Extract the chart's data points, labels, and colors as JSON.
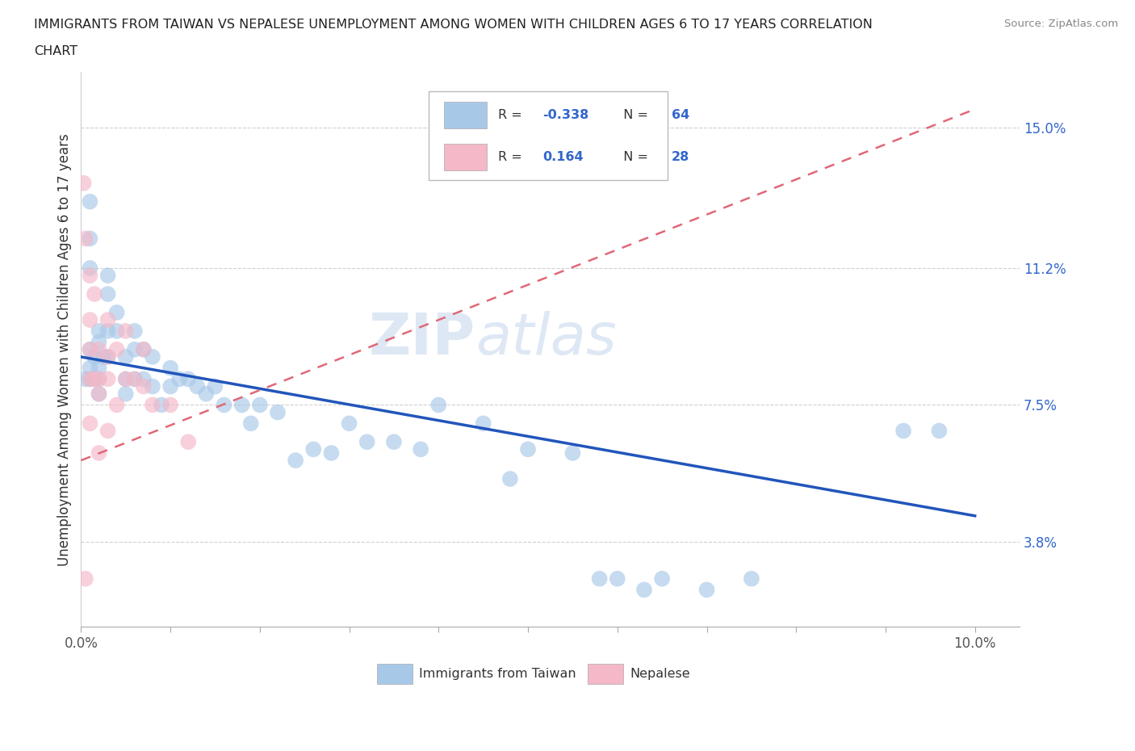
{
  "title_line1": "IMMIGRANTS FROM TAIWAN VS NEPALESE UNEMPLOYMENT AMONG WOMEN WITH CHILDREN AGES 6 TO 17 YEARS CORRELATION",
  "title_line2": "CHART",
  "source": "Source: ZipAtlas.com",
  "ylabel": "Unemployment Among Women with Children Ages 6 to 17 years",
  "xlim": [
    0.0,
    0.105
  ],
  "ylim": [
    0.015,
    0.165
  ],
  "right_ytick_labels": [
    "15.0%",
    "11.2%",
    "7.5%",
    "3.8%"
  ],
  "right_ytick_vals": [
    0.15,
    0.112,
    0.075,
    0.038
  ],
  "taiwan_color": "#a8c8e8",
  "nepalese_color": "#f4b8c8",
  "taiwan_line_color": "#2255bb",
  "nepalese_line_color": "#e06878",
  "watermark_zip": "ZIP",
  "watermark_atlas": "atlas",
  "legend_box_color_taiwan": "#a8c8e8",
  "legend_box_color_nepalese": "#f4b8c8",
  "legend_label_taiwan": "Immigrants from Taiwan",
  "legend_label_nepalese": "Nepalese",
  "taiwan_x": [
    0.0005,
    0.001,
    0.001,
    0.001,
    0.001,
    0.001,
    0.001,
    0.0015,
    0.0015,
    0.002,
    0.002,
    0.002,
    0.002,
    0.002,
    0.0025,
    0.003,
    0.003,
    0.003,
    0.003,
    0.004,
    0.004,
    0.005,
    0.005,
    0.005,
    0.006,
    0.006,
    0.006,
    0.007,
    0.007,
    0.008,
    0.008,
    0.009,
    0.01,
    0.01,
    0.011,
    0.012,
    0.013,
    0.014,
    0.015,
    0.016,
    0.018,
    0.019,
    0.02,
    0.022,
    0.024,
    0.026,
    0.028,
    0.03,
    0.032,
    0.035,
    0.038,
    0.04,
    0.045,
    0.048,
    0.05,
    0.055,
    0.058,
    0.06,
    0.063,
    0.065,
    0.07,
    0.075,
    0.092,
    0.096
  ],
  "taiwan_y": [
    0.082,
    0.13,
    0.12,
    0.112,
    0.09,
    0.085,
    0.082,
    0.088,
    0.082,
    0.095,
    0.092,
    0.085,
    0.082,
    0.078,
    0.088,
    0.11,
    0.105,
    0.095,
    0.088,
    0.1,
    0.095,
    0.088,
    0.082,
    0.078,
    0.095,
    0.09,
    0.082,
    0.09,
    0.082,
    0.088,
    0.08,
    0.075,
    0.085,
    0.08,
    0.082,
    0.082,
    0.08,
    0.078,
    0.08,
    0.075,
    0.075,
    0.07,
    0.075,
    0.073,
    0.06,
    0.063,
    0.062,
    0.07,
    0.065,
    0.065,
    0.063,
    0.075,
    0.07,
    0.055,
    0.063,
    0.062,
    0.028,
    0.028,
    0.025,
    0.028,
    0.025,
    0.028,
    0.068,
    0.068
  ],
  "nepalese_x": [
    0.0003,
    0.0005,
    0.0005,
    0.001,
    0.001,
    0.001,
    0.001,
    0.001,
    0.0015,
    0.0015,
    0.002,
    0.002,
    0.002,
    0.002,
    0.003,
    0.003,
    0.003,
    0.003,
    0.004,
    0.004,
    0.005,
    0.005,
    0.006,
    0.007,
    0.007,
    0.008,
    0.01,
    0.012
  ],
  "nepalese_y": [
    0.135,
    0.12,
    0.028,
    0.11,
    0.098,
    0.09,
    0.082,
    0.07,
    0.105,
    0.082,
    0.09,
    0.082,
    0.078,
    0.062,
    0.098,
    0.088,
    0.082,
    0.068,
    0.09,
    0.075,
    0.095,
    0.082,
    0.082,
    0.09,
    0.08,
    0.075,
    0.075,
    0.065
  ],
  "tw_line_x0": 0.0,
  "tw_line_y0": 0.088,
  "tw_line_x1": 0.1,
  "tw_line_y1": 0.045,
  "ne_line_x0": 0.0,
  "ne_line_y0": 0.06,
  "ne_line_x1": 0.1,
  "ne_line_y1": 0.155
}
